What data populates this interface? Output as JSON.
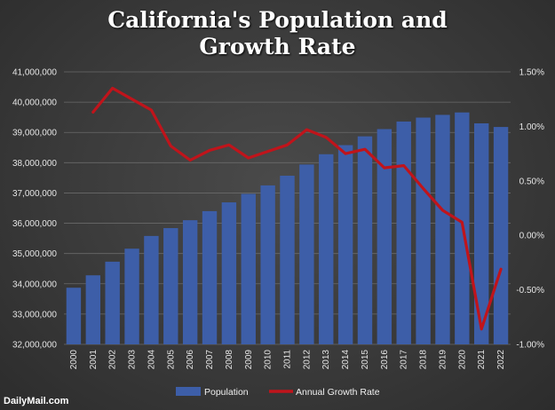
{
  "chart_data": {
    "type": "bar",
    "title_line1": "California's Population and",
    "title_line2": "Growth Rate",
    "categories": [
      "2000",
      "2001",
      "2002",
      "2003",
      "2004",
      "2005",
      "2006",
      "2007",
      "2008",
      "2009",
      "2010",
      "2011",
      "2012",
      "2013",
      "2014",
      "2015",
      "2016",
      "2017",
      "2018",
      "2019",
      "2020",
      "2021",
      "2022"
    ],
    "series": [
      {
        "name": "Population",
        "axis": "left",
        "type": "bar",
        "color": "#3d5ea8",
        "values": [
          33870000,
          34280000,
          34730000,
          35160000,
          35580000,
          35840000,
          36100000,
          36400000,
          36690000,
          36970000,
          37250000,
          37570000,
          37940000,
          38280000,
          38580000,
          38870000,
          39110000,
          39360000,
          39490000,
          39580000,
          39660000,
          39300000,
          39180000
        ]
      },
      {
        "name": "Annual Growth Rate",
        "axis": "right",
        "type": "line",
        "color": "#c0141b",
        "values": [
          null,
          1.13,
          1.35,
          1.25,
          1.15,
          0.82,
          0.69,
          0.78,
          0.83,
          0.71,
          0.77,
          0.83,
          0.97,
          0.9,
          0.75,
          0.79,
          0.62,
          0.64,
          0.43,
          0.23,
          0.12,
          -0.86,
          -0.31
        ]
      }
    ],
    "y_left": {
      "min": 32000000,
      "max": 41000000,
      "ticks": [
        32000000,
        33000000,
        34000000,
        35000000,
        36000000,
        37000000,
        38000000,
        39000000,
        40000000,
        41000000
      ],
      "tick_labels": [
        "32,000,000",
        "33,000,000",
        "34,000,000",
        "35,000,000",
        "36,000,000",
        "37,000,000",
        "38,000,000",
        "39,000,000",
        "40,000,000",
        "41,000,000"
      ]
    },
    "y_right": {
      "min": -1.0,
      "max": 1.5,
      "ticks": [
        -1.0,
        -0.5,
        0.0,
        0.5,
        1.0,
        1.5
      ],
      "tick_labels": [
        "-1.00%",
        "-0.50%",
        "0.00%",
        "0.50%",
        "1.00%",
        "1.50%"
      ]
    },
    "grid": true,
    "legend": "bottom-center"
  },
  "watermark": "DailyMail.com"
}
